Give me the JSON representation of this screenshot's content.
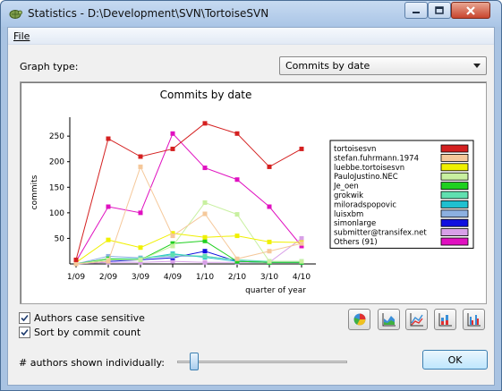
{
  "window": {
    "title": "Statistics - D:\\Development\\SVN\\TortoiseSVN"
  },
  "menu": {
    "file_label": "File"
  },
  "graph_type": {
    "label": "Graph type:",
    "selected": "Commits by date"
  },
  "options": {
    "authors_case_sensitive": {
      "label": "Authors case sensitive",
      "checked": true
    },
    "sort_by_commit_count": {
      "label": "Sort by commit count",
      "checked": true
    }
  },
  "authors_shown": {
    "label": "# authors shown individually:",
    "slider_fraction": 0.08
  },
  "ok_label": "OK",
  "chart_buttons": [
    "pie-chart-icon",
    "area-chart-icon",
    "stacked-area-chart-icon",
    "stacked-bar-chart-icon",
    "bar-chart-icon"
  ],
  "chart_data": {
    "type": "line",
    "title": "Commits by date",
    "xlabel": "quarter of year",
    "ylabel": "commits",
    "categories": [
      "1/09",
      "2/09",
      "3/09",
      "4/09",
      "1/10",
      "2/10",
      "3/10",
      "4/10"
    ],
    "ylim": [
      0,
      280
    ],
    "yticks": [
      "50",
      "100",
      "150",
      "200",
      "250"
    ],
    "legend_position": "right",
    "series": [
      {
        "name": "tortoisesvn",
        "color": "#d42020",
        "values": [
          8,
          245,
          210,
          225,
          275,
          255,
          190,
          225
        ]
      },
      {
        "name": "stefan.fuhrmann.1974",
        "color": "#f5c89a",
        "values": [
          0,
          5,
          190,
          55,
          98,
          10,
          25,
          40
        ]
      },
      {
        "name": "luebbe.tortoisesvn",
        "color": "#f0f000",
        "values": [
          3,
          47,
          32,
          60,
          52,
          55,
          43,
          42
        ]
      },
      {
        "name": "PauloJustino.NEC",
        "color": "#c8f0a0",
        "values": [
          0,
          8,
          8,
          35,
          120,
          97,
          5,
          5
        ]
      },
      {
        "name": "Je_oen",
        "color": "#20d020",
        "values": [
          0,
          10,
          8,
          40,
          45,
          5,
          3,
          3
        ]
      },
      {
        "name": "grokwik",
        "color": "#60e0b0",
        "values": [
          0,
          8,
          10,
          18,
          15,
          8,
          5,
          5
        ]
      },
      {
        "name": "miloradspopovic",
        "color": "#20c0d0",
        "values": [
          0,
          10,
          10,
          20,
          13,
          5,
          3,
          3
        ]
      },
      {
        "name": "luisxbm",
        "color": "#8cb0e0",
        "values": [
          0,
          15,
          12,
          15,
          15,
          8,
          3,
          3
        ]
      },
      {
        "name": "simonlarge",
        "color": "#1010e0",
        "values": [
          0,
          5,
          8,
          12,
          25,
          5,
          3,
          3
        ]
      },
      {
        "name": "submitter@transifex.net",
        "color": "#d8a0e8",
        "values": [
          0,
          3,
          3,
          5,
          3,
          3,
          3,
          50
        ]
      },
      {
        "name": "Others (91)",
        "color": "#e010c0",
        "values": [
          5,
          112,
          100,
          255,
          188,
          165,
          112,
          35
        ]
      }
    ]
  }
}
